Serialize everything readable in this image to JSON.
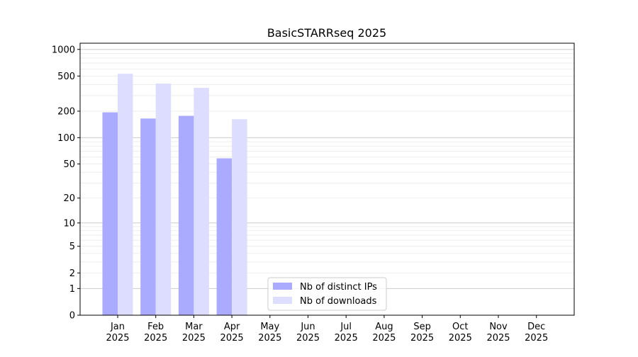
{
  "chart_data": {
    "type": "bar",
    "title": "BasicSTARRseq 2025",
    "xlabel": "",
    "ylabel": "",
    "y_scale": "log(1+y)",
    "ylim": [
      0,
      1175
    ],
    "yticks": [
      0,
      1,
      2,
      5,
      10,
      20,
      50,
      100,
      200,
      500,
      1000
    ],
    "grid": true,
    "legend_position": "bottom-center",
    "categories": [
      "Jan\n2025",
      "Feb\n2025",
      "Mar\n2025",
      "Apr\n2025",
      "May\n2025",
      "Jun\n2025",
      "Jul\n2025",
      "Aug\n2025",
      "Sep\n2025",
      "Oct\n2025",
      "Nov\n2025",
      "Dec\n2025"
    ],
    "series": [
      {
        "name": "Nb of distinct IPs",
        "color": "#aaaaff",
        "values": [
          194,
          165,
          177,
          58,
          null,
          null,
          null,
          null,
          null,
          null,
          null,
          null
        ]
      },
      {
        "name": "Nb of downloads",
        "color": "#ddddff",
        "values": [
          531,
          411,
          368,
          162,
          null,
          null,
          null,
          null,
          null,
          null,
          null,
          null
        ]
      }
    ]
  }
}
